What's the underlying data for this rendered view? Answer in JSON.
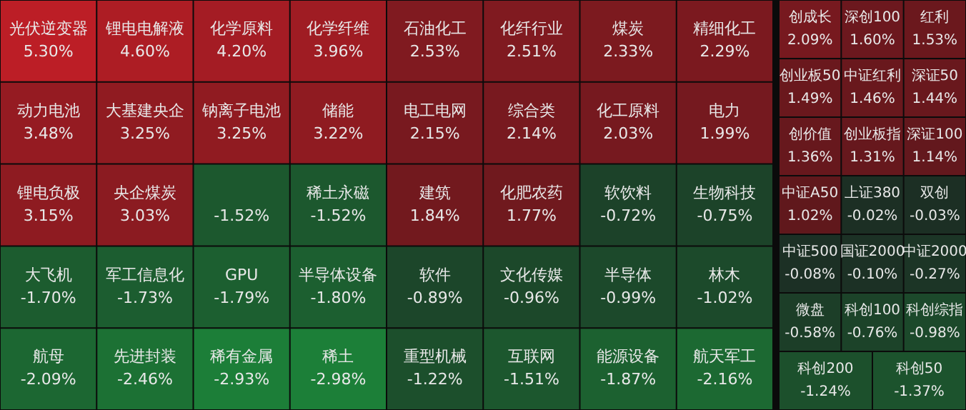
{
  "chart_data": [
    {
      "type": "other",
      "categories": [
        "光伏逆变器",
        "锂电电解液",
        "化学原料",
        "化学纤维",
        "石油化工",
        "化纤行业",
        "煤炭",
        "精细化工",
        "动力电池",
        "大基建央企",
        "钠离子电池",
        "储能",
        "电工电网",
        "综合类",
        "化工原料",
        "电力",
        "锂电负极",
        "央企煤炭",
        null,
        "稀土永磁",
        "建筑",
        "化肥农药",
        "软饮料",
        "生物科技",
        "大飞机",
        "军工信息化",
        "GPU",
        "半导体设备",
        "软件",
        "文化传媒",
        "半导体",
        "林木",
        "航母",
        "先进封装",
        "稀有金属",
        "稀土",
        "重型机械",
        "互联网",
        "能源设备",
        "航天军工"
      ],
      "values": [
        5.3,
        4.6,
        4.2,
        3.96,
        2.53,
        2.51,
        2.33,
        2.29,
        3.48,
        3.25,
        3.25,
        3.22,
        2.15,
        2.14,
        2.03,
        1.99,
        3.15,
        3.03,
        -1.52,
        -1.52,
        1.84,
        1.77,
        -0.72,
        -0.75,
        -1.7,
        -1.73,
        -1.79,
        -1.8,
        -0.89,
        -0.96,
        -0.99,
        -1.02,
        -2.09,
        -2.46,
        -2.93,
        -2.98,
        -1.22,
        -1.51,
        -1.87,
        -2.16
      ],
      "value_labels": [
        "5.30%",
        "4.60%",
        "4.20%",
        "3.96%",
        "2.53%",
        "2.51%",
        "2.33%",
        "2.29%",
        "3.48%",
        "3.25%",
        "3.25%",
        "3.22%",
        "2.15%",
        "2.14%",
        "2.03%",
        "1.99%",
        "3.15%",
        "3.03%",
        "-1.52%",
        "-1.52%",
        "1.84%",
        "1.77%",
        "-0.72%",
        "-0.75%",
        "-1.70%",
        "-1.73%",
        "-1.79%",
        "-1.80%",
        "-0.89%",
        "-0.96%",
        "-0.99%",
        "-1.02%",
        "-2.09%",
        "-2.46%",
        "-2.93%",
        "-2.98%",
        "-1.22%",
        "-1.51%",
        "-1.87%",
        "-2.16%"
      ]
    },
    {
      "type": "other",
      "categories": [
        "创成长",
        "深创100",
        "红利",
        "创业板50",
        "中证红利",
        "深证50",
        "创价值",
        "创业板指",
        "深证100",
        "中证A50",
        "上证380",
        "双创",
        "中证500",
        "国证2000",
        "中证2000",
        "微盘",
        "科创100",
        "科创综指",
        "科创200",
        "科创50"
      ],
      "values": [
        2.09,
        1.6,
        1.53,
        1.49,
        1.46,
        1.44,
        1.36,
        1.31,
        1.14,
        1.02,
        -0.02,
        -0.03,
        -0.08,
        -0.1,
        -0.27,
        -0.58,
        -0.76,
        -0.98,
        -1.24,
        -1.37
      ],
      "value_labels": [
        "2.09%",
        "1.60%",
        "1.53%",
        "1.49%",
        "1.46%",
        "1.44%",
        "1.36%",
        "1.31%",
        "1.14%",
        "1.02%",
        "-0.02%",
        "-0.03%",
        "-0.08%",
        "-0.10%",
        "-0.27%",
        "-0.58%",
        "-0.76%",
        "-0.98%",
        "-1.24%",
        "-1.37%"
      ]
    }
  ]
}
